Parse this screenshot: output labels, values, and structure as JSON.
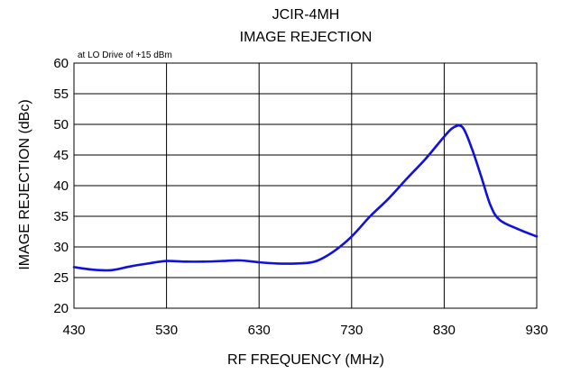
{
  "chart_data": {
    "type": "line",
    "title": "JCIR-4MH",
    "subtitle": "IMAGE REJECTION",
    "annotation": "at LO Drive of +15 dBm",
    "xlabel": "RF FREQUENCY (MHz)",
    "ylabel": "IMAGE REJECTION (dBc)",
    "xlim": [
      430,
      930
    ],
    "ylim": [
      20,
      60
    ],
    "xticks": [
      430,
      530,
      630,
      730,
      830,
      930
    ],
    "yticks": [
      20,
      25,
      30,
      35,
      40,
      45,
      50,
      55,
      60
    ],
    "grid": true,
    "legend": "none",
    "colors": {
      "series": "#1111d8",
      "grid": "#000000"
    },
    "series": [
      {
        "x": [
          430,
          450,
          470,
          490,
          510,
          530,
          550,
          570,
          590,
          610,
          630,
          650,
          670,
          690,
          710,
          730,
          750,
          770,
          790,
          810,
          830,
          840,
          850,
          860,
          870,
          880,
          890,
          910,
          930
        ],
        "y": [
          26.7,
          26.3,
          26.2,
          26.8,
          27.3,
          27.7,
          27.6,
          27.6,
          27.7,
          27.8,
          27.5,
          27.3,
          27.3,
          27.6,
          29.2,
          31.7,
          35.0,
          37.9,
          41.2,
          44.4,
          48.0,
          49.5,
          49.5,
          46.0,
          41.5,
          36.8,
          34.4,
          32.9,
          31.7
        ]
      }
    ]
  }
}
